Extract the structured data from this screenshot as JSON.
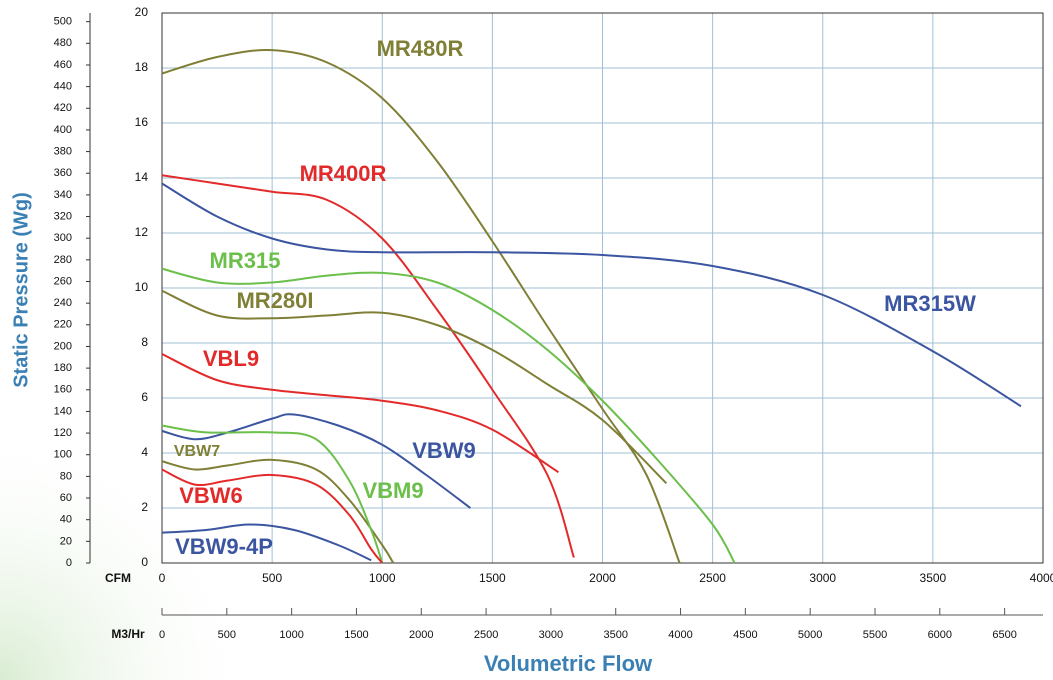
{
  "chart_data": {
    "type": "line",
    "x_label": "Volumetric Flow",
    "y_label": "Static Pressure (Wg)",
    "x_unit_label": "CFM",
    "x2_unit_label": "M3/Hr",
    "xlim": [
      0,
      4000
    ],
    "xticks": [
      0,
      500,
      1000,
      1500,
      2000,
      2500,
      3000,
      3500,
      4000
    ],
    "x2lim": [
      0,
      6796
    ],
    "x2ticks": [
      0,
      500,
      1000,
      1500,
      2000,
      2500,
      3000,
      3500,
      4000,
      4500,
      5000,
      5500,
      6000,
      6500
    ],
    "ylim": [
      0,
      20
    ],
    "yticks": [
      0,
      2,
      4,
      6,
      8,
      10,
      12,
      14,
      16,
      18,
      20
    ],
    "y2lim": [
      0,
      508
    ],
    "y2ticks": [
      0,
      20,
      40,
      60,
      80,
      100,
      120,
      140,
      160,
      180,
      200,
      220,
      240,
      260,
      280,
      300,
      320,
      340,
      360,
      380,
      400,
      420,
      440,
      460,
      480,
      500
    ],
    "grid": true,
    "series": [
      {
        "name": "MR480R",
        "color": "#807f36",
        "x": [
          0,
          250,
          500,
          750,
          1000,
          1250,
          1500,
          1750,
          2000,
          2200,
          2350
        ],
        "values": [
          17.8,
          18.4,
          18.65,
          18.2,
          16.9,
          14.6,
          11.7,
          8.6,
          5.6,
          3.2,
          0
        ]
      },
      {
        "name": "MR400R",
        "color": "#e32a2a",
        "x": [
          0,
          250,
          500,
          750,
          1000,
          1250,
          1500,
          1750,
          1870
        ],
        "values": [
          14.1,
          13.8,
          13.5,
          13.2,
          11.8,
          9.2,
          6.3,
          3.2,
          0.2
        ]
      },
      {
        "name": "MR315W",
        "color": "#3b55a0",
        "x": [
          0,
          250,
          500,
          750,
          1000,
          1500,
          2000,
          2500,
          3000,
          3500,
          3900
        ],
        "values": [
          13.8,
          12.6,
          11.8,
          11.4,
          11.3,
          11.3,
          11.2,
          10.8,
          9.75,
          7.7,
          5.7
        ]
      },
      {
        "name": "MR315",
        "color": "#6bbf4a",
        "x": [
          0,
          250,
          500,
          750,
          1000,
          1250,
          1500,
          1750,
          2000,
          2250,
          2500,
          2600
        ],
        "values": [
          10.7,
          10.2,
          10.2,
          10.45,
          10.55,
          10.2,
          9.2,
          7.75,
          5.9,
          3.75,
          1.4,
          0
        ]
      },
      {
        "name": "MR280I",
        "color": "#807f36",
        "x": [
          0,
          250,
          500,
          750,
          1000,
          1250,
          1500,
          1750,
          2000,
          2290
        ],
        "values": [
          9.9,
          9.0,
          8.9,
          9.0,
          9.1,
          8.65,
          7.75,
          6.5,
          5.2,
          2.9
        ]
      },
      {
        "name": "VBL9",
        "color": "#e32a2a",
        "x": [
          0,
          250,
          500,
          750,
          1000,
          1250,
          1500,
          1800
        ],
        "values": [
          7.6,
          6.65,
          6.3,
          6.1,
          5.9,
          5.55,
          4.85,
          3.3
        ]
      },
      {
        "name": "VBW9",
        "color": "#3b55a0",
        "x": [
          0,
          150,
          300,
          500,
          600,
          800,
          1000,
          1200,
          1400
        ],
        "values": [
          4.8,
          4.5,
          4.75,
          5.25,
          5.4,
          5.0,
          4.3,
          3.2,
          2.0
        ]
      },
      {
        "name": "VBW7",
        "color": "#807f36",
        "x": [
          0,
          150,
          300,
          500,
          700,
          850,
          1000,
          1050
        ],
        "values": [
          3.7,
          3.4,
          3.55,
          3.75,
          3.4,
          2.3,
          0.65,
          0
        ]
      },
      {
        "name": "VBM9",
        "color": "#6bbf4a",
        "x": [
          0,
          200,
          500,
          700,
          850,
          950,
          1000
        ],
        "values": [
          5.0,
          4.75,
          4.75,
          4.5,
          3.0,
          1.2,
          0
        ]
      },
      {
        "name": "VBW6",
        "color": "#e32a2a",
        "x": [
          0,
          150,
          300,
          500,
          700,
          850,
          950,
          1000
        ],
        "values": [
          3.4,
          2.85,
          3.0,
          3.2,
          2.85,
          1.75,
          0.5,
          0
        ]
      },
      {
        "name": "VBW9-4P",
        "color": "#3b55a0",
        "x": [
          0,
          200,
          400,
          600,
          800,
          950
        ],
        "values": [
          1.1,
          1.2,
          1.4,
          1.2,
          0.65,
          0.1
        ]
      }
    ]
  }
}
